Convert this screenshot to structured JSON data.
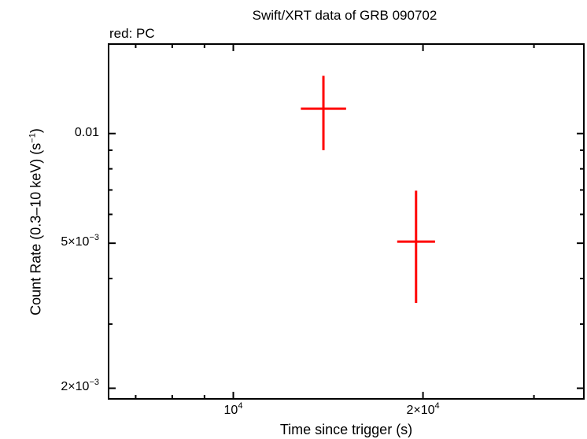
{
  "chart_data": {
    "type": "scatter",
    "title": "Swift/XRT data of GRB 090702",
    "subtitle": "red: PC",
    "xlabel": "Time since trigger (s)",
    "ylabel": "Count Rate (0.3–10 keV) (s⁻¹)",
    "xscale": "log",
    "yscale": "log",
    "xlim": [
      6340,
      36000
    ],
    "ylim": [
      0.00187,
      0.0176
    ],
    "x_ticks": [
      {
        "value": 10000,
        "label_base": "10",
        "label_exp": "4"
      },
      {
        "value": 20000,
        "label_base": "2×10",
        "label_exp": "4"
      }
    ],
    "y_ticks": [
      {
        "value": 0.01,
        "label_base": "0.01",
        "label_exp": ""
      },
      {
        "value": 0.005,
        "label_base": "5×10",
        "label_exp": "−3"
      },
      {
        "value": 0.002,
        "label_base": "2×10",
        "label_exp": "−3"
      }
    ],
    "grid": false,
    "legend": "none",
    "series": [
      {
        "name": "PC",
        "color": "#ff0000",
        "points": [
          {
            "x": 13900,
            "x_lo": 12800,
            "x_hi": 15100,
            "y": 0.0117,
            "y_lo": 0.009,
            "y_hi": 0.0144
          },
          {
            "x": 19500,
            "x_lo": 18200,
            "x_hi": 20900,
            "y": 0.00505,
            "y_lo": 0.00343,
            "y_hi": 0.00697
          }
        ]
      }
    ]
  }
}
